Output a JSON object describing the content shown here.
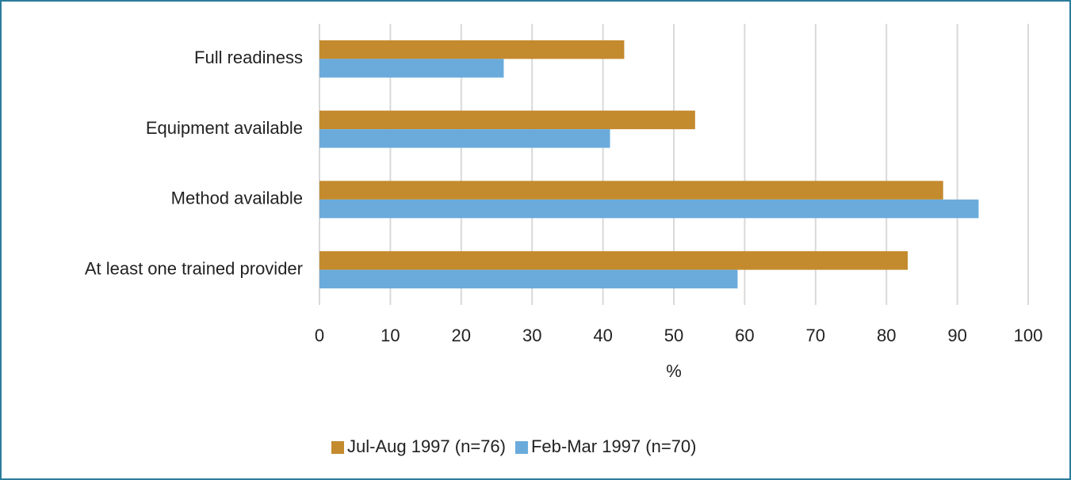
{
  "chart_data": {
    "type": "bar",
    "orientation": "horizontal",
    "categories": [
      "Full readiness",
      "Equipment available",
      "Method available",
      "At least one trained provider"
    ],
    "series": [
      {
        "name": "Jul-Aug 1997 (n=76)",
        "color": "#c48a2e",
        "values": [
          43,
          53,
          88,
          83
        ]
      },
      {
        "name": "Feb-Mar 1997 (n=70)",
        "color": "#6aabdc",
        "values": [
          26,
          41,
          93,
          59
        ]
      }
    ],
    "xlabel": "%",
    "xlim": [
      0,
      100
    ],
    "xticks": [
      0,
      10,
      20,
      30,
      40,
      50,
      60,
      70,
      80,
      90,
      100
    ],
    "grid": true,
    "legend": "bottom"
  }
}
